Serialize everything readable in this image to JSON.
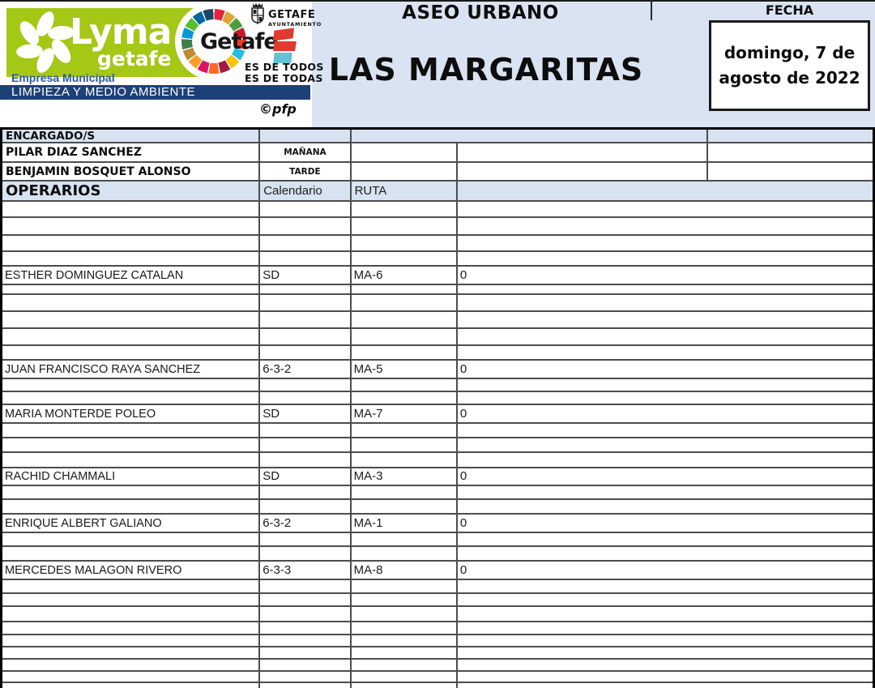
{
  "header": {
    "lyma": {
      "brand": "Lyma",
      "brand_sub": "getafe",
      "empresa": "Empresa Municipal",
      "bar": "LIMPIEZA Y MEDIO AMBIENTE",
      "green": "#a5c716",
      "bar_blue": "#1d4077"
    },
    "getafe": {
      "name": "Getafe",
      "city": "GETAFE",
      "hall": "AYUNTAMIENTO",
      "tagline1": "ES DE TODOS",
      "tagline2": "ES DE TODAS",
      "wheel_colors": [
        "#e5243b",
        "#dda63a",
        "#4c9f38",
        "#c5192d",
        "#ff3a21",
        "#26bde2",
        "#fcc30b",
        "#a21942",
        "#fd6925",
        "#dd1367",
        "#fd9d24",
        "#bf8b2e",
        "#3f7e44",
        "#0a97d9",
        "#56c02b",
        "#00689d",
        "#19486a"
      ]
    },
    "pfp": "©pfp",
    "center": {
      "title": "ASEO URBANO",
      "subtitle": "LAS MARGARITAS"
    },
    "fecha": {
      "label": "FECHA",
      "date_line1": "domingo, 7 de",
      "date_line2": "agosto de 2022"
    }
  },
  "encargados": {
    "section_label": "ENCARGADO/S",
    "rows": [
      {
        "name": "PILAR DIAZ SANCHEZ",
        "shift": "MAÑANA"
      },
      {
        "name": "BENJAMIN BOSQUET ALONSO",
        "shift": "TARDE"
      }
    ]
  },
  "operarios": {
    "section_label": "OPERARIOS",
    "col_calendario": "Calendario",
    "col_ruta": "RUTA",
    "rows": [
      {
        "name": "ESTHER DOMINGUEZ CATALAN",
        "calendario": "SD",
        "ruta": "MA-6",
        "valor": "0"
      },
      {
        "name": "JUAN FRANCISCO RAYA SANCHEZ",
        "calendario": "6-3-2",
        "ruta": "MA-5",
        "valor": "0"
      },
      {
        "name": "MARIA MONTERDE POLEO",
        "calendario": "SD",
        "ruta": "MA-7",
        "valor": "0"
      },
      {
        "name": "RACHID CHAMMALI",
        "calendario": "SD",
        "ruta": "MA-3",
        "valor": "0"
      },
      {
        "name": "ENRIQUE ALBERT GALIANO",
        "calendario": "6-3-2",
        "ruta": "MA-1",
        "valor": "0"
      },
      {
        "name": "MERCEDES MALAGON RIVERO",
        "calendario": "6-3-3",
        "ruta": "MA-8",
        "valor": "0"
      }
    ]
  },
  "colors": {
    "band_blue": "#dae3f2",
    "row_blue": "#d8e3f1",
    "grid_line": "#4d4d4d"
  }
}
